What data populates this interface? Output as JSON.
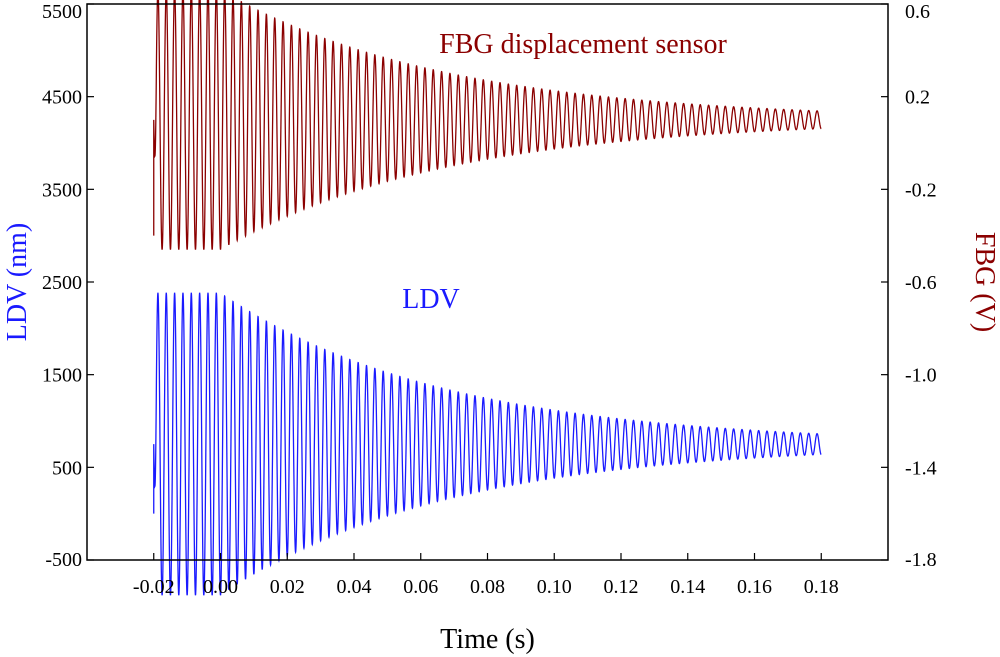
{
  "chart_data": {
    "type": "line",
    "title": "",
    "xlabel": "Time (s)",
    "ylabel_left": "LDV (nm)",
    "ylabel_right": "FBG (V)",
    "xlim": [
      -0.04,
      0.2
    ],
    "ylim_left": [
      -500,
      5500
    ],
    "ylim_right": [
      -1.8,
      0.6
    ],
    "x_ticks": [
      -0.02,
      0.0,
      0.02,
      0.04,
      0.06,
      0.08,
      0.1,
      0.12,
      0.14,
      0.16,
      0.18
    ],
    "x_tick_labels": [
      "-0.02",
      "0.00",
      "0.02",
      "0.04",
      "0.06",
      "0.08",
      "0.10",
      "0.12",
      "0.14",
      "0.16",
      "0.18"
    ],
    "y_left_ticks": [
      -500,
      500,
      1500,
      2500,
      3500,
      4500,
      5500
    ],
    "y_left_tick_labels": [
      "-500",
      "500",
      "1500",
      "2500",
      "3500",
      "4500",
      "5500"
    ],
    "y_right_ticks": [
      -1.8,
      -1.4,
      -1.0,
      -0.6,
      -0.2,
      0.2,
      0.6
    ],
    "y_right_tick_labels": [
      "-1.8",
      "-1.4",
      "-1.0",
      "-0.6",
      "-0.2",
      "0.2",
      "0.6"
    ],
    "grid": false,
    "colors": {
      "ldv": "#1a1aff",
      "fbg": "#8b0000",
      "axis": "#000000"
    },
    "annotations": [
      {
        "text": "FBG displacement sensor",
        "series": "fbg"
      },
      {
        "text": "LDV",
        "series": "ldv"
      }
    ],
    "series": [
      {
        "name": "FBG displacement sensor",
        "axis": "right",
        "color": "#8b0000",
        "signal": {
          "t_start": -0.02,
          "t_end": 0.18,
          "frequency_hz": 400,
          "offset": 0.1,
          "amplitude_initial": 0.56,
          "hold_until": 0.0,
          "decay_tau": 0.067,
          "start_value": -0.4
        }
      },
      {
        "name": "LDV",
        "axis": "left",
        "color": "#1a1aff",
        "signal": {
          "t_start": -0.02,
          "t_end": 0.18,
          "frequency_hz": 400,
          "offset": 750,
          "amplitude_initial": 1630,
          "hold_until": 0.0,
          "decay_tau": 0.067,
          "start_value": 0
        }
      }
    ]
  }
}
